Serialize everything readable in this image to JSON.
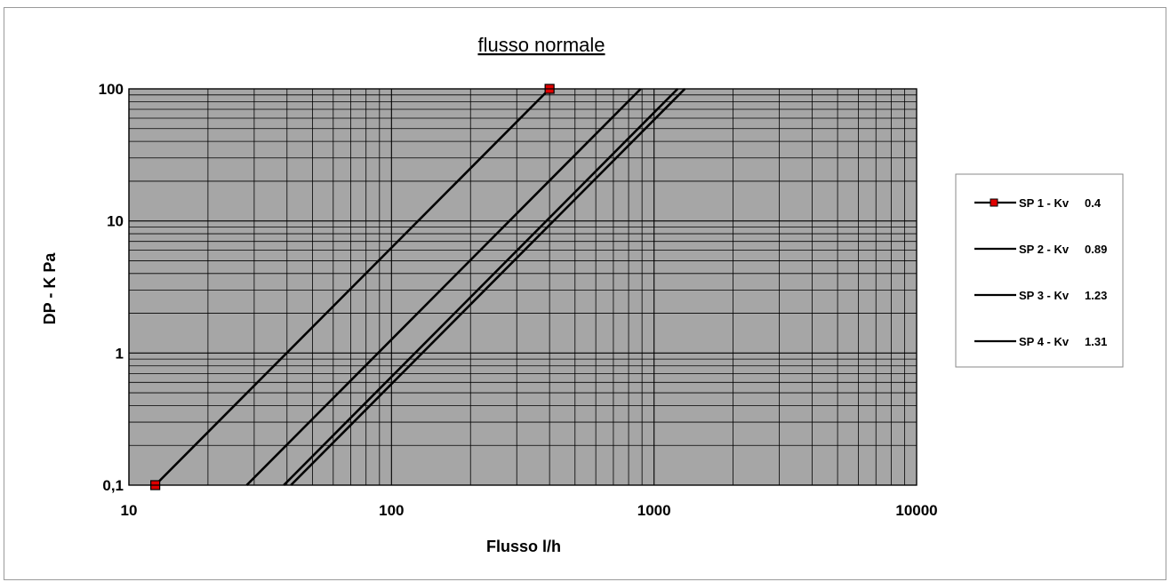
{
  "chart_data": {
    "type": "line",
    "title": "flusso normale",
    "xlabel": "Flusso l/h",
    "ylabel": "DP - K Pa",
    "xscale": "log",
    "yscale": "log",
    "xlim": [
      10,
      10000
    ],
    "ylim": [
      0.1,
      100
    ],
    "x_ticks": [
      {
        "value": 10,
        "label": "10"
      },
      {
        "value": 100,
        "label": "100"
      },
      {
        "value": 1000,
        "label": "1000"
      },
      {
        "value": 10000,
        "label": "10000"
      }
    ],
    "y_ticks": [
      {
        "value": 0.1,
        "label": "0,1"
      },
      {
        "value": 1,
        "label": "1"
      },
      {
        "value": 10,
        "label": "10"
      },
      {
        "value": 100,
        "label": "100"
      }
    ],
    "grid": true,
    "plot_background": "#a6a6a6",
    "legend_position": "right",
    "series": [
      {
        "name": "SP 1 - Kv",
        "kv": "0.4",
        "marker": "square",
        "marker_color": "#e00000",
        "x": [
          12.6,
          400
        ],
        "y": [
          0.1,
          100
        ]
      },
      {
        "name": "SP 2 - Kv",
        "kv": "0.89",
        "x": [
          28.1,
          890
        ],
        "y": [
          0.1,
          100
        ]
      },
      {
        "name": "SP 3 - Kv",
        "kv": "1.23",
        "x": [
          38.9,
          1230
        ],
        "y": [
          0.1,
          100
        ]
      },
      {
        "name": "SP 4 - Kv",
        "kv": "1.31",
        "x": [
          41.4,
          1310
        ],
        "y": [
          0.1,
          100
        ]
      }
    ]
  }
}
